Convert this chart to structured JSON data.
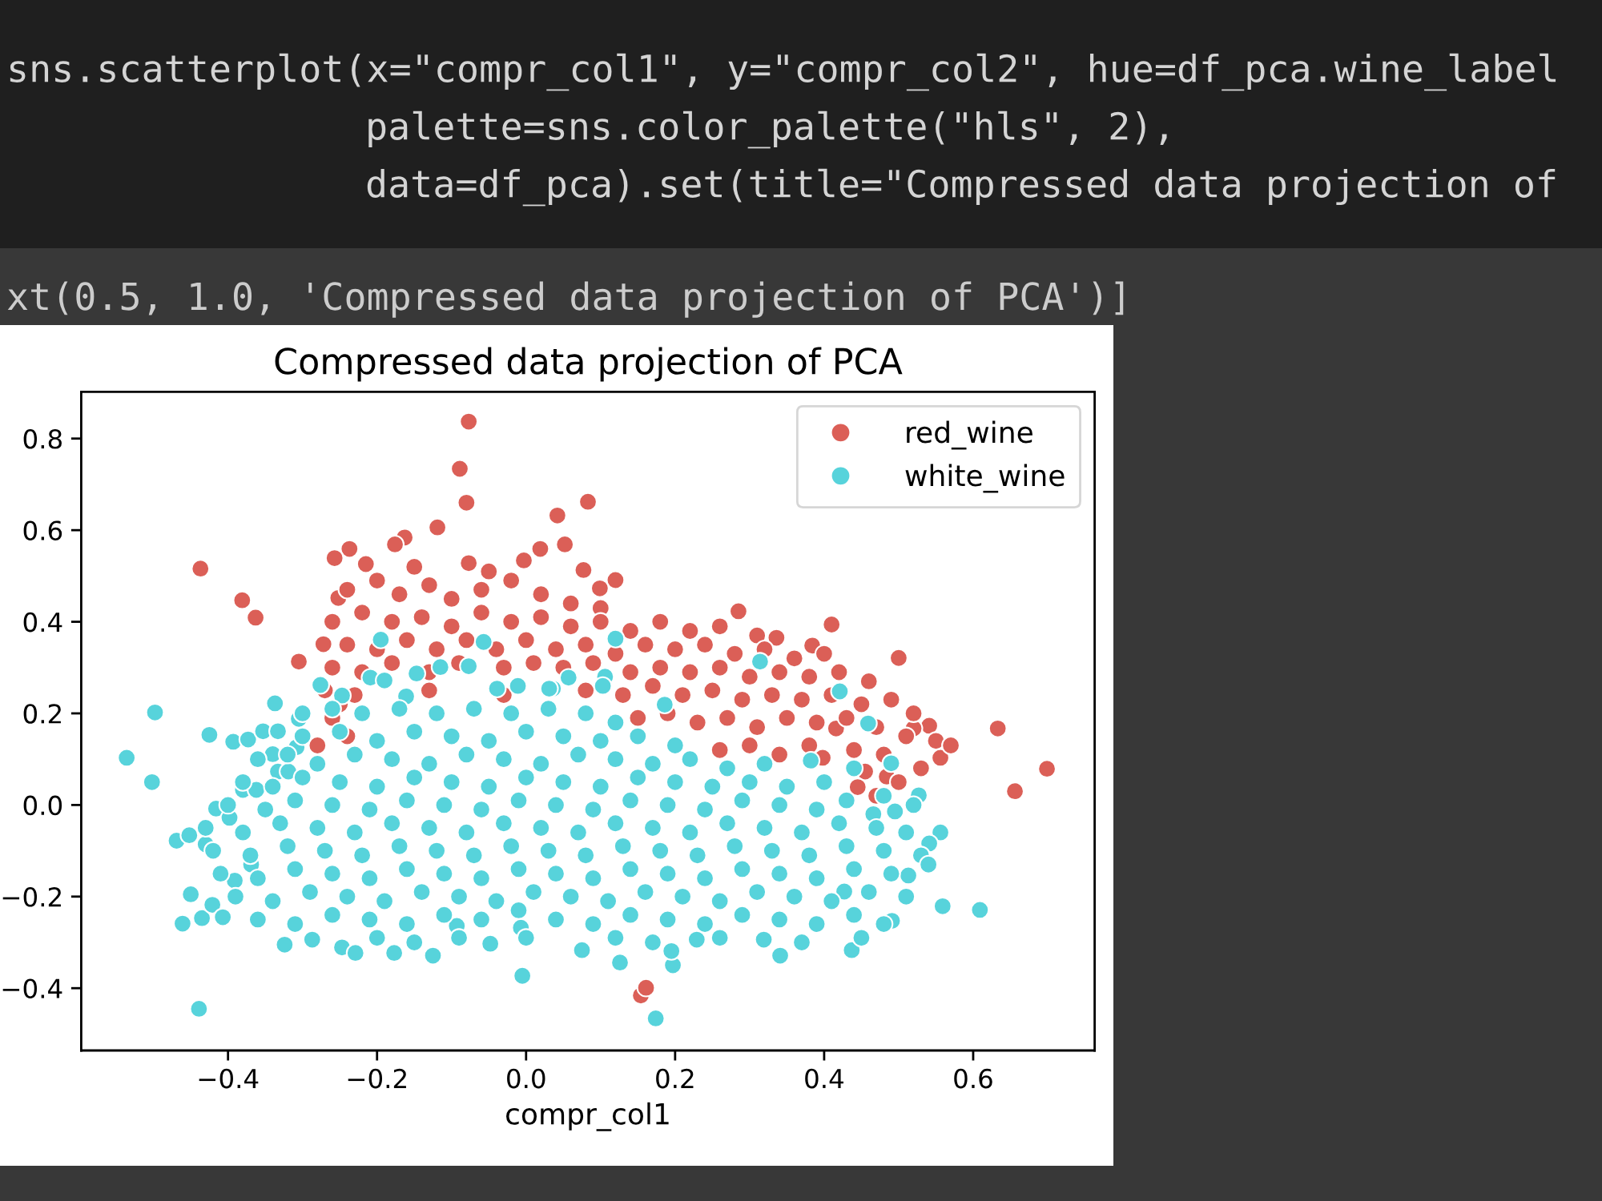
{
  "chart_data": {
    "type": "scatter",
    "title": "Compressed data projection of PCA",
    "xlabel": "compr_col1",
    "xlim": [
      -0.597,
      0.763
    ],
    "ylim": [
      -0.536,
      0.902
    ],
    "xticks": [
      {
        "value": -0.4,
        "label": "−0.4"
      },
      {
        "value": -0.2,
        "label": "−0.2"
      },
      {
        "value": 0,
        "label": "0.0"
      },
      0.2,
      0.4,
      0.6
    ],
    "yticks": [
      {
        "value": -0.4,
        "label": "−0.4"
      },
      {
        "value": -0.2,
        "label": "−0.2"
      },
      {
        "value": 0,
        "label": "0.0"
      },
      0.2,
      0.4,
      0.6,
      0.8
    ],
    "marker": "circle",
    "legend": "top right",
    "annotations": [
      "sns.scatterplot(x=\"compr_col1\", y=\"compr_col2\", hue=df_pca.wine_label",
      "palette=sns.color_palette(\"hls\", 2),",
      "data=df_pca).set(title=\"Compressed data projection of",
      "xt(0.5, 1.0, 'Compressed data projection of PCA')]"
    ],
    "series": [
      {
        "name": "red_wine",
        "color": "#db5f57",
        "x": [
          -0.437,
          -0.381,
          -0.363,
          -0.305,
          -0.077,
          -0.089,
          -0.08,
          -0.077,
          -0.119,
          -0.237,
          -0.257,
          -0.163,
          -0.176,
          0.042,
          -0.272,
          -0.252,
          -0.215,
          0.019,
          -0.003,
          0.052,
          0.083,
          0.077,
          0.099,
          0.12,
          0.285,
          0.41,
          0.5,
          0.633,
          0.336,
          0.384,
          0.699,
          0.656,
          0.556,
          0.541,
          0.52,
          0.455,
          0.445,
          0.484,
          0.154,
          0.161,
          0.416,
          0.398,
          -0.24,
          -0.2,
          -0.17,
          -0.13,
          -0.1,
          -0.06,
          -0.02,
          0.02,
          0.06,
          0.1,
          -0.15,
          -0.05,
          -0.26,
          -0.22,
          -0.18,
          -0.14,
          -0.1,
          -0.06,
          -0.02,
          0.02,
          0.06,
          0.1,
          0.14,
          0.18,
          0.22,
          0.26,
          0.31,
          -0.24,
          -0.2,
          -0.16,
          -0.12,
          -0.08,
          -0.04,
          0.0,
          0.04,
          0.08,
          0.12,
          0.16,
          0.2,
          0.24,
          0.28,
          0.32,
          0.36,
          0.4,
          -0.26,
          -0.22,
          -0.18,
          -0.13,
          -0.09,
          -0.03,
          0.01,
          0.05,
          0.09,
          0.14,
          0.18,
          0.22,
          0.26,
          0.3,
          0.34,
          0.38,
          0.42,
          0.46,
          -0.27,
          -0.23,
          -0.13,
          -0.03,
          0.08,
          0.13,
          0.17,
          0.21,
          0.25,
          0.29,
          0.33,
          0.37,
          0.41,
          0.45,
          0.49,
          0.52,
          -0.26,
          -0.24,
          0.15,
          0.19,
          0.23,
          0.27,
          0.31,
          0.35,
          0.39,
          0.43,
          0.47,
          0.51,
          0.55,
          0.26,
          0.3,
          0.34,
          0.38,
          0.44,
          0.48,
          0.53,
          0.57,
          0.5,
          0.47,
          -0.28,
          -0.25
        ],
        "values": [
          0.516,
          0.447,
          0.409,
          0.313,
          0.837,
          0.734,
          0.66,
          0.528,
          0.606,
          0.559,
          0.539,
          0.584,
          0.569,
          0.632,
          0.351,
          0.452,
          0.526,
          0.559,
          0.534,
          0.569,
          0.662,
          0.513,
          0.473,
          0.491,
          0.423,
          0.394,
          0.321,
          0.167,
          0.365,
          0.348,
          0.079,
          0.03,
          0.103,
          0.173,
          0.167,
          0.073,
          0.039,
          0.062,
          -0.416,
          -0.399,
          0.167,
          0.103,
          0.47,
          0.49,
          0.46,
          0.48,
          0.45,
          0.47,
          0.49,
          0.46,
          0.44,
          0.43,
          0.52,
          0.51,
          0.4,
          0.42,
          0.4,
          0.41,
          0.39,
          0.42,
          0.4,
          0.41,
          0.39,
          0.4,
          0.38,
          0.4,
          0.38,
          0.39,
          0.37,
          0.35,
          0.34,
          0.36,
          0.34,
          0.36,
          0.34,
          0.36,
          0.34,
          0.35,
          0.33,
          0.35,
          0.34,
          0.35,
          0.33,
          0.34,
          0.32,
          0.33,
          0.3,
          0.29,
          0.31,
          0.29,
          0.31,
          0.3,
          0.31,
          0.3,
          0.31,
          0.29,
          0.3,
          0.29,
          0.3,
          0.28,
          0.29,
          0.28,
          0.29,
          0.27,
          0.25,
          0.24,
          0.25,
          0.24,
          0.25,
          0.24,
          0.26,
          0.24,
          0.25,
          0.23,
          0.24,
          0.23,
          0.24,
          0.22,
          0.23,
          0.2,
          0.19,
          0.15,
          0.19,
          0.2,
          0.18,
          0.19,
          0.17,
          0.19,
          0.18,
          0.19,
          0.17,
          0.15,
          0.14,
          0.12,
          0.13,
          0.11,
          0.13,
          0.12,
          0.11,
          0.08,
          0.13,
          0.05,
          0.02,
          0.13,
          0.22
        ]
      },
      {
        "name": "white_wine",
        "color": "#57d3db",
        "x": [
          -0.498,
          -0.536,
          -0.502,
          -0.425,
          -0.393,
          -0.373,
          -0.353,
          -0.333,
          -0.34,
          -0.308,
          -0.337,
          -0.276,
          -0.195,
          -0.057,
          -0.077,
          -0.115,
          -0.147,
          -0.209,
          -0.19,
          -0.161,
          -0.011,
          0.057,
          -0.039,
          0.036,
          -0.247,
          -0.305,
          0.12,
          0.314,
          0.421,
          0.459,
          0.106,
          0.103,
          0.186,
          0.031,
          0.49,
          0.382,
          0.527,
          0.495,
          0.466,
          0.556,
          0.541,
          0.559,
          0.609,
          0.491,
          0.437,
          0.341,
          0.197,
          0.195,
          0.126,
          0.075,
          0.174,
          0.229,
          0.319,
          0.427,
          0.513,
          -0.469,
          -0.452,
          -0.43,
          -0.45,
          -0.461,
          -0.435,
          -0.421,
          -0.407,
          -0.416,
          -0.398,
          -0.439,
          -0.324,
          -0.287,
          -0.247,
          -0.229,
          -0.177,
          -0.125,
          -0.093,
          -0.048,
          -0.005,
          -0.007,
          -0.391,
          -0.369,
          -0.38,
          -0.362,
          -0.333,
          -0.319,
          -0.3,
          -0.26,
          -0.22,
          -0.17,
          -0.12,
          -0.07,
          -0.02,
          0.03,
          0.08,
          0.12,
          -0.3,
          -0.25,
          -0.2,
          -0.15,
          -0.1,
          -0.05,
          0.0,
          0.05,
          0.1,
          0.15,
          0.2,
          -0.36,
          -0.32,
          -0.28,
          -0.23,
          -0.18,
          -0.13,
          -0.08,
          -0.03,
          0.02,
          0.07,
          0.12,
          0.17,
          0.22,
          0.27,
          0.32,
          -0.38,
          -0.34,
          -0.3,
          -0.25,
          -0.2,
          -0.15,
          -0.1,
          -0.05,
          0.0,
          0.05,
          0.1,
          0.15,
          0.2,
          0.25,
          0.3,
          0.35,
          0.4,
          0.44,
          -0.4,
          -0.35,
          -0.31,
          -0.26,
          -0.21,
          -0.16,
          -0.11,
          -0.06,
          -0.01,
          0.04,
          0.09,
          0.14,
          0.19,
          0.24,
          0.29,
          0.34,
          0.39,
          0.43,
          0.48,
          0.52,
          -0.43,
          -0.38,
          -0.33,
          -0.28,
          -0.23,
          -0.18,
          -0.13,
          -0.08,
          -0.03,
          0.02,
          0.07,
          0.12,
          0.17,
          0.22,
          0.27,
          0.32,
          0.37,
          0.42,
          0.47,
          0.51,
          -0.42,
          -0.37,
          -0.32,
          -0.27,
          -0.22,
          -0.17,
          -0.12,
          -0.07,
          -0.02,
          0.03,
          0.08,
          0.13,
          0.18,
          0.23,
          0.28,
          0.33,
          0.38,
          0.43,
          0.48,
          0.53,
          -0.41,
          -0.36,
          -0.31,
          -0.26,
          -0.21,
          -0.16,
          -0.11,
          -0.06,
          -0.01,
          0.04,
          0.09,
          0.14,
          0.19,
          0.24,
          0.29,
          0.34,
          0.39,
          0.44,
          0.49,
          0.54,
          -0.39,
          -0.34,
          -0.29,
          -0.24,
          -0.19,
          -0.14,
          -0.09,
          -0.04,
          0.01,
          0.06,
          0.11,
          0.16,
          0.21,
          0.26,
          0.31,
          0.36,
          0.41,
          0.46,
          0.51,
          -0.36,
          -0.31,
          -0.26,
          -0.21,
          -0.16,
          -0.11,
          -0.06,
          -0.01,
          0.04,
          0.09,
          0.14,
          0.19,
          0.24,
          0.29,
          0.34,
          0.39,
          0.44,
          0.48,
          -0.2,
          -0.15,
          -0.09,
          0.0,
          0.12,
          0.17,
          0.26,
          0.37,
          0.45
        ],
        "values": [
          0.202,
          0.103,
          0.05,
          0.153,
          0.138,
          0.143,
          0.161,
          0.161,
          0.111,
          0.126,
          0.222,
          0.262,
          0.361,
          0.356,
          0.303,
          0.301,
          0.287,
          0.278,
          0.272,
          0.237,
          0.26,
          0.278,
          0.254,
          0.254,
          0.239,
          0.188,
          0.363,
          0.313,
          0.248,
          0.178,
          0.28,
          0.26,
          0.219,
          0.254,
          0.091,
          0.097,
          0.021,
          -0.014,
          -0.02,
          -0.06,
          -0.084,
          -0.221,
          -0.229,
          -0.253,
          -0.317,
          -0.329,
          -0.35,
          -0.319,
          -0.344,
          -0.317,
          -0.466,
          -0.294,
          -0.294,
          -0.189,
          -0.154,
          -0.078,
          -0.066,
          -0.086,
          -0.195,
          -0.259,
          -0.247,
          -0.218,
          -0.245,
          -0.008,
          -0.028,
          -0.445,
          -0.305,
          -0.294,
          -0.311,
          -0.323,
          -0.323,
          -0.329,
          -0.264,
          -0.303,
          -0.373,
          -0.268,
          -0.165,
          -0.13,
          0.033,
          0.033,
          0.073,
          0.073,
          0.2,
          0.21,
          0.2,
          0.21,
          0.2,
          0.21,
          0.2,
          0.21,
          0.2,
          0.18,
          0.15,
          0.16,
          0.14,
          0.16,
          0.15,
          0.14,
          0.16,
          0.15,
          0.14,
          0.15,
          0.13,
          0.1,
          0.11,
          0.09,
          0.11,
          0.1,
          0.09,
          0.11,
          0.1,
          0.09,
          0.11,
          0.1,
          0.09,
          0.1,
          0.08,
          0.09,
          0.05,
          0.04,
          0.06,
          0.05,
          0.04,
          0.06,
          0.05,
          0.04,
          0.06,
          0.05,
          0.04,
          0.06,
          0.05,
          0.04,
          0.05,
          0.04,
          0.05,
          0.08,
          0.0,
          -0.01,
          0.01,
          0.0,
          -0.01,
          0.01,
          0.0,
          -0.01,
          0.01,
          0.0,
          -0.01,
          0.01,
          0.0,
          -0.01,
          0.01,
          0.0,
          -0.01,
          0.01,
          0.02,
          0.0,
          -0.05,
          -0.06,
          -0.04,
          -0.05,
          -0.06,
          -0.04,
          -0.05,
          -0.06,
          -0.04,
          -0.05,
          -0.06,
          -0.04,
          -0.05,
          -0.06,
          -0.04,
          -0.05,
          -0.06,
          -0.04,
          -0.05,
          -0.06,
          -0.1,
          -0.11,
          -0.09,
          -0.1,
          -0.11,
          -0.09,
          -0.1,
          -0.11,
          -0.09,
          -0.1,
          -0.11,
          -0.09,
          -0.1,
          -0.11,
          -0.09,
          -0.1,
          -0.11,
          -0.09,
          -0.1,
          -0.11,
          -0.15,
          -0.16,
          -0.14,
          -0.15,
          -0.16,
          -0.14,
          -0.15,
          -0.16,
          -0.14,
          -0.15,
          -0.16,
          -0.14,
          -0.15,
          -0.16,
          -0.14,
          -0.15,
          -0.16,
          -0.14,
          -0.15,
          -0.13,
          -0.2,
          -0.21,
          -0.19,
          -0.2,
          -0.21,
          -0.19,
          -0.2,
          -0.21,
          -0.19,
          -0.2,
          -0.21,
          -0.19,
          -0.2,
          -0.21,
          -0.19,
          -0.2,
          -0.21,
          -0.19,
          -0.2,
          -0.25,
          -0.26,
          -0.24,
          -0.25,
          -0.26,
          -0.24,
          -0.25,
          -0.23,
          -0.25,
          -0.26,
          -0.24,
          -0.25,
          -0.26,
          -0.24,
          -0.25,
          -0.26,
          -0.24,
          -0.26,
          -0.29,
          -0.3,
          -0.29,
          -0.29,
          -0.29,
          -0.3,
          -0.29,
          -0.3,
          -0.29
        ]
      }
    ]
  }
}
